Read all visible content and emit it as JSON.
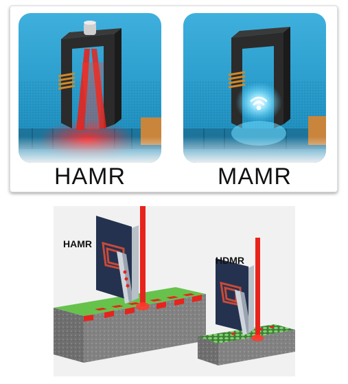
{
  "top_panels": {
    "left_label": "HAMR",
    "right_label": "MAMR"
  },
  "bottom_figure": {
    "left_label": "HAMR",
    "right_label": "HDMR"
  },
  "colors": {
    "platter_blue": "#2aa4d4",
    "laser_red": "#e8231c",
    "head_dark": "#2c2c2c",
    "coil_copper": "#c98a2b",
    "media_green": "#6cc24a",
    "substrate_gray": "#7a7a7a"
  }
}
